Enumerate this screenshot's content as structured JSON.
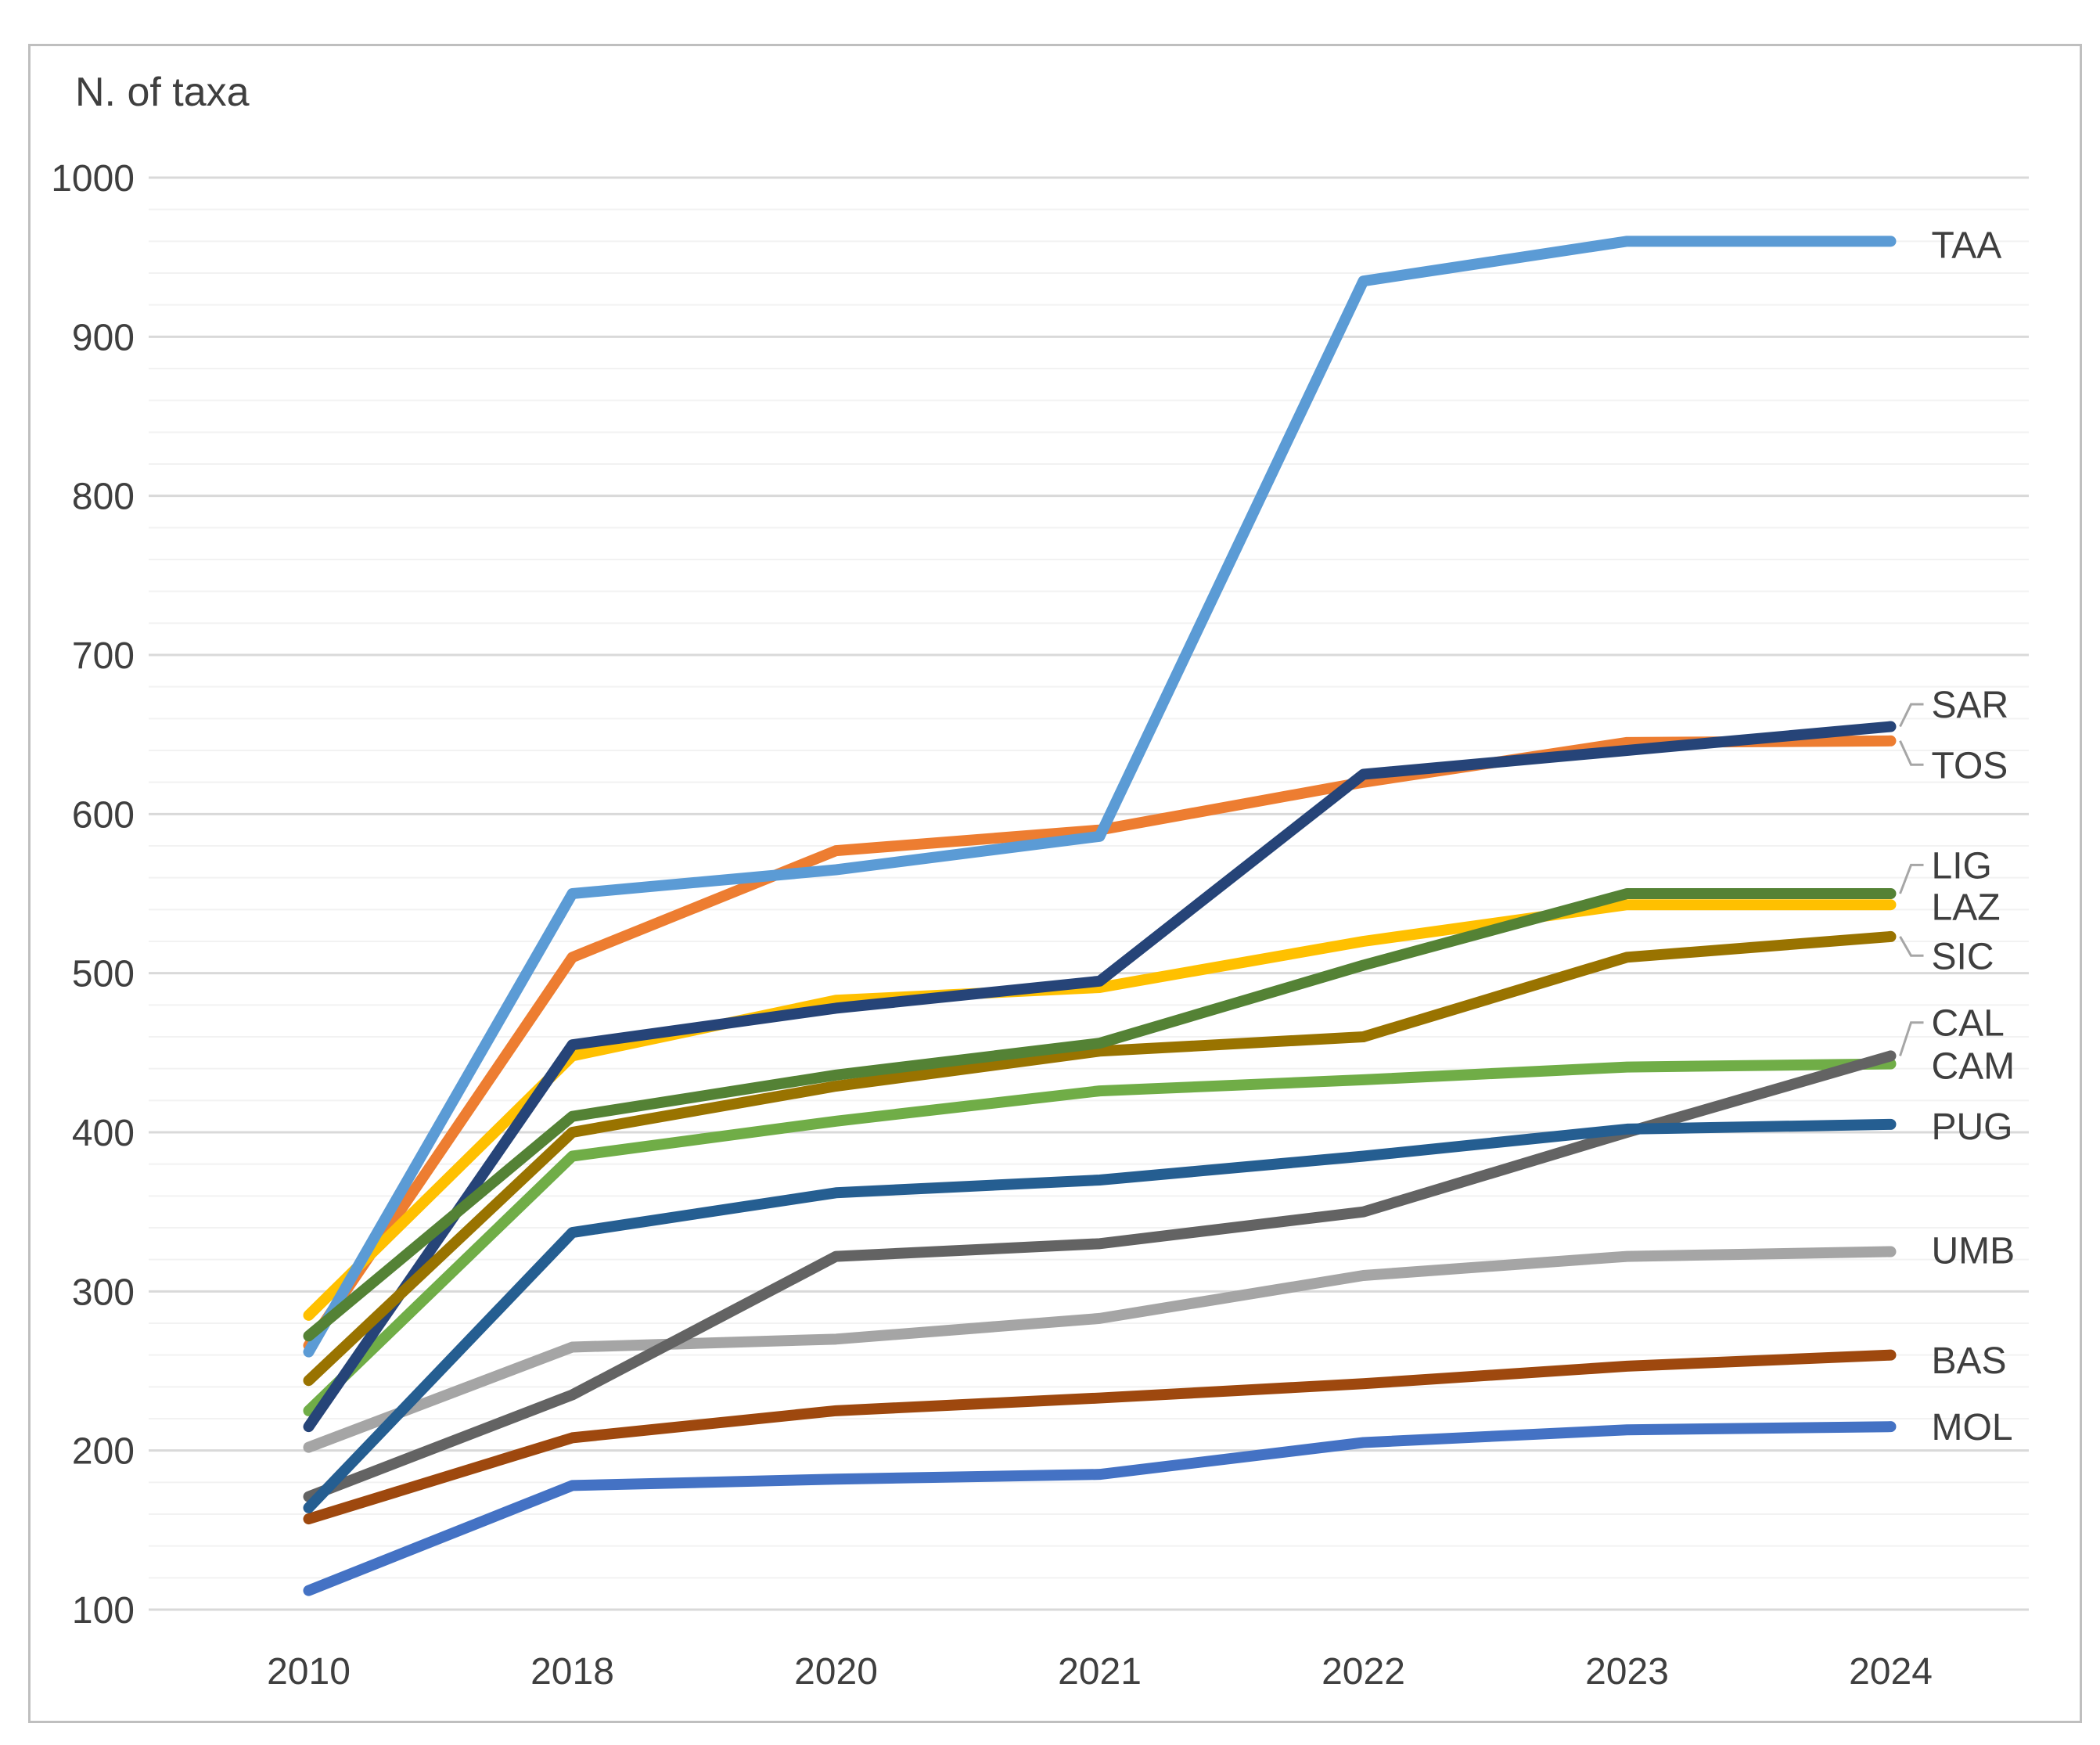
{
  "text_color": "#3F3F3F",
  "frame": {
    "border_color": "#BFBFBF"
  },
  "grid": {
    "minor_color": "#F2F2F2",
    "major_color": "#D9D9D9"
  },
  "callout_color": "#A6A6A6",
  "chart_data": {
    "type": "line",
    "title": "N. of taxa",
    "xlabel": "",
    "ylabel": "N. of taxa",
    "categories": [
      "2010",
      "2018",
      "2020",
      "2021",
      "2022",
      "2023",
      "2024"
    ],
    "ylim": [
      100,
      1000
    ],
    "y_major_step": 100,
    "y_minor_step": 20,
    "grid": true,
    "legend_position": "right-end-labels",
    "series": [
      {
        "name": "TAA",
        "color": "#5B9BD5",
        "values": [
          262,
          550,
          565,
          586,
          935,
          960,
          960
        ],
        "label_v": 958,
        "callout": false
      },
      {
        "name": "SAR",
        "color": "#264478",
        "values": [
          215,
          455,
          478,
          495,
          625,
          640,
          655
        ],
        "label_v": 669,
        "callout": true
      },
      {
        "name": "TOS",
        "color": "#ED7D31",
        "values": [
          266,
          510,
          577,
          590,
          620,
          645,
          646
        ],
        "label_v": 631,
        "callout": true
      },
      {
        "name": "LIG",
        "color": "#548235",
        "values": [
          272,
          410,
          436,
          456,
          505,
          550,
          550
        ],
        "label_v": 568,
        "callout": true
      },
      {
        "name": "LAZ",
        "color": "#FFC000",
        "values": [
          285,
          448,
          483,
          491,
          520,
          543,
          543
        ],
        "label_v": 542,
        "callout": false
      },
      {
        "name": "SIC",
        "color": "#997300",
        "values": [
          244,
          400,
          429,
          451,
          460,
          510,
          523
        ],
        "label_v": 511,
        "callout": true
      },
      {
        "name": "CAL",
        "color": "#636363",
        "values": [
          171,
          235,
          322,
          330,
          350,
          400,
          448
        ],
        "label_v": 469,
        "callout": true
      },
      {
        "name": "CAM",
        "color": "#70AD47",
        "values": [
          225,
          385,
          407,
          426,
          433,
          441,
          443
        ],
        "label_v": 442,
        "callout": false
      },
      {
        "name": "PUG",
        "color": "#255E91",
        "values": [
          164,
          337,
          362,
          370,
          385,
          402,
          405
        ],
        "label_v": 404,
        "callout": false
      },
      {
        "name": "UMB",
        "color": "#A5A5A5",
        "values": [
          202,
          265,
          270,
          283,
          310,
          322,
          325
        ],
        "label_v": 326,
        "callout": false
      },
      {
        "name": "BAS",
        "color": "#9E480E",
        "values": [
          157,
          208,
          225,
          233,
          242,
          253,
          260
        ],
        "label_v": 257,
        "callout": false
      },
      {
        "name": "MOL",
        "color": "#4472C4",
        "values": [
          112,
          178,
          182,
          185,
          205,
          213,
          215
        ],
        "label_v": 215,
        "callout": false
      }
    ],
    "draw_order": [
      "MOL",
      "TOS",
      "UMB",
      "LAZ",
      "TAA",
      "CAM",
      "SAR",
      "BAS",
      "CAL",
      "SIC",
      "PUG",
      "LIG"
    ]
  }
}
